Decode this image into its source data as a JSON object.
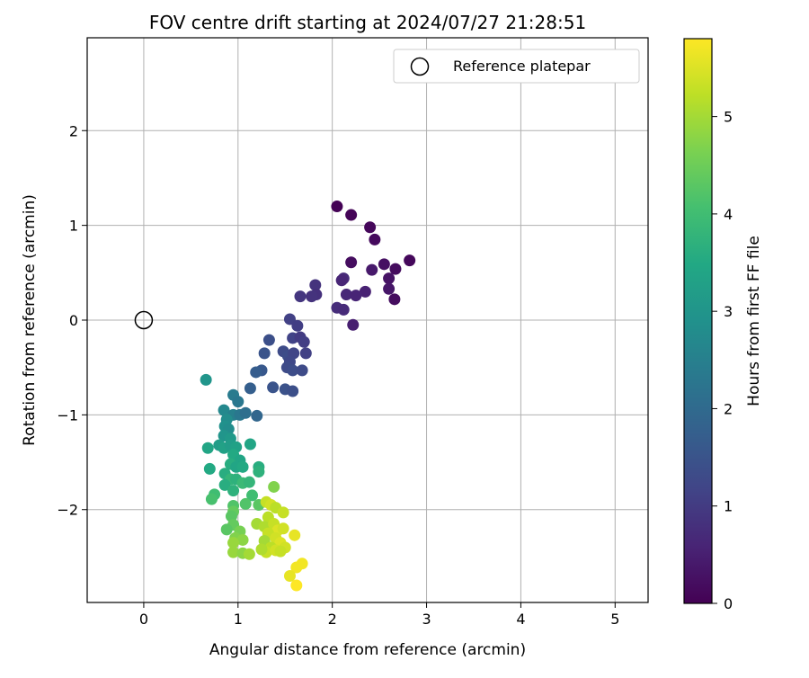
{
  "chart_data": {
    "type": "scatter",
    "title": "FOV centre drift starting at 2024/07/27 21:28:51",
    "xlabel": "Angular distance from reference (arcmin)",
    "ylabel": "Rotation from reference (arcmin)",
    "xlim": [
      -0.6,
      5.35
    ],
    "ylim": [
      -2.98,
      2.98
    ],
    "xticks": [
      0,
      1,
      2,
      3,
      4,
      5
    ],
    "yticks": [
      -2,
      -1,
      0,
      1,
      2
    ],
    "grid": true,
    "legend": {
      "placement": "top-right",
      "entries": [
        "Reference platepar"
      ]
    },
    "reference_point": {
      "name": "Reference platepar",
      "x": 0,
      "y": 0
    },
    "colorbar": {
      "label": "Hours from first FF file",
      "colormap": "viridis",
      "range": [
        0,
        5.8
      ],
      "ticks": [
        0,
        1,
        2,
        3,
        4,
        5
      ]
    },
    "points": [
      {
        "x": 2.05,
        "y": 1.2,
        "t": 0.02
      },
      {
        "x": 2.2,
        "y": 1.11,
        "t": 0.05
      },
      {
        "x": 2.4,
        "y": 0.98,
        "t": 0.1
      },
      {
        "x": 2.45,
        "y": 0.85,
        "t": 0.15
      },
      {
        "x": 2.2,
        "y": 0.61,
        "t": 0.2
      },
      {
        "x": 2.55,
        "y": 0.59,
        "t": 0.25
      },
      {
        "x": 2.82,
        "y": 0.63,
        "t": 0.12
      },
      {
        "x": 2.67,
        "y": 0.54,
        "t": 0.18
      },
      {
        "x": 2.42,
        "y": 0.53,
        "t": 0.4
      },
      {
        "x": 2.6,
        "y": 0.44,
        "t": 0.3
      },
      {
        "x": 2.12,
        "y": 0.44,
        "t": 0.7
      },
      {
        "x": 2.1,
        "y": 0.42,
        "t": 0.62
      },
      {
        "x": 2.6,
        "y": 0.33,
        "t": 0.35
      },
      {
        "x": 2.35,
        "y": 0.3,
        "t": 0.55
      },
      {
        "x": 2.15,
        "y": 0.27,
        "t": 0.65
      },
      {
        "x": 2.25,
        "y": 0.26,
        "t": 0.6
      },
      {
        "x": 2.66,
        "y": 0.22,
        "t": 0.2
      },
      {
        "x": 2.05,
        "y": 0.13,
        "t": 0.75
      },
      {
        "x": 2.12,
        "y": 0.11,
        "t": 0.7
      },
      {
        "x": 2.22,
        "y": -0.05,
        "t": 0.5
      },
      {
        "x": 1.82,
        "y": 0.37,
        "t": 0.85
      },
      {
        "x": 1.83,
        "y": 0.27,
        "t": 0.8
      },
      {
        "x": 1.78,
        "y": 0.25,
        "t": 0.85
      },
      {
        "x": 1.66,
        "y": 0.25,
        "t": 0.9
      },
      {
        "x": 1.55,
        "y": 0.01,
        "t": 1.1
      },
      {
        "x": 1.63,
        "y": -0.06,
        "t": 1.05
      },
      {
        "x": 1.58,
        "y": -0.19,
        "t": 1.15
      },
      {
        "x": 1.66,
        "y": -0.18,
        "t": 1.0
      },
      {
        "x": 1.7,
        "y": -0.23,
        "t": 1.05
      },
      {
        "x": 1.33,
        "y": -0.21,
        "t": 1.4
      },
      {
        "x": 1.28,
        "y": -0.35,
        "t": 1.5
      },
      {
        "x": 1.48,
        "y": -0.33,
        "t": 1.3
      },
      {
        "x": 1.53,
        "y": -0.38,
        "t": 1.35
      },
      {
        "x": 1.59,
        "y": -0.35,
        "t": 1.2
      },
      {
        "x": 1.72,
        "y": -0.35,
        "t": 1.1
      },
      {
        "x": 1.55,
        "y": -0.44,
        "t": 1.25
      },
      {
        "x": 1.52,
        "y": -0.5,
        "t": 1.3
      },
      {
        "x": 1.58,
        "y": -0.53,
        "t": 1.35
      },
      {
        "x": 1.68,
        "y": -0.53,
        "t": 1.3
      },
      {
        "x": 1.25,
        "y": -0.53,
        "t": 1.6
      },
      {
        "x": 1.19,
        "y": -0.55,
        "t": 1.7
      },
      {
        "x": 1.37,
        "y": -0.71,
        "t": 1.5
      },
      {
        "x": 1.5,
        "y": -0.73,
        "t": 1.45
      },
      {
        "x": 1.58,
        "y": -0.75,
        "t": 1.4
      },
      {
        "x": 1.13,
        "y": -0.72,
        "t": 1.75
      },
      {
        "x": 0.66,
        "y": -0.63,
        "t": 3.0
      },
      {
        "x": 0.95,
        "y": -0.79,
        "t": 2.4
      },
      {
        "x": 1.0,
        "y": -0.86,
        "t": 2.3
      },
      {
        "x": 0.85,
        "y": -0.95,
        "t": 2.7
      },
      {
        "x": 0.95,
        "y": -1.0,
        "t": 2.5
      },
      {
        "x": 1.02,
        "y": -1.0,
        "t": 2.3
      },
      {
        "x": 1.08,
        "y": -0.98,
        "t": 2.1
      },
      {
        "x": 1.2,
        "y": -1.01,
        "t": 1.9
      },
      {
        "x": 0.88,
        "y": -1.05,
        "t": 2.8
      },
      {
        "x": 0.86,
        "y": -1.12,
        "t": 2.9
      },
      {
        "x": 0.9,
        "y": -1.15,
        "t": 2.8
      },
      {
        "x": 0.85,
        "y": -1.22,
        "t": 3.0
      },
      {
        "x": 0.92,
        "y": -1.25,
        "t": 3.1
      },
      {
        "x": 0.8,
        "y": -1.32,
        "t": 3.2
      },
      {
        "x": 0.85,
        "y": -1.35,
        "t": 3.3
      },
      {
        "x": 0.92,
        "y": -1.32,
        "t": 3.2
      },
      {
        "x": 0.98,
        "y": -1.34,
        "t": 3.3
      },
      {
        "x": 0.68,
        "y": -1.35,
        "t": 3.4
      },
      {
        "x": 1.13,
        "y": -1.31,
        "t": 3.4
      },
      {
        "x": 0.95,
        "y": -1.42,
        "t": 3.5
      },
      {
        "x": 1.02,
        "y": -1.48,
        "t": 3.4
      },
      {
        "x": 0.92,
        "y": -1.52,
        "t": 3.6
      },
      {
        "x": 0.98,
        "y": -1.55,
        "t": 3.4
      },
      {
        "x": 1.05,
        "y": -1.55,
        "t": 3.5
      },
      {
        "x": 0.7,
        "y": -1.57,
        "t": 3.5
      },
      {
        "x": 1.22,
        "y": -1.55,
        "t": 3.6
      },
      {
        "x": 1.22,
        "y": -1.6,
        "t": 3.7
      },
      {
        "x": 0.86,
        "y": -1.62,
        "t": 3.6
      },
      {
        "x": 0.92,
        "y": -1.68,
        "t": 3.8
      },
      {
        "x": 0.98,
        "y": -1.68,
        "t": 3.7
      },
      {
        "x": 1.05,
        "y": -1.72,
        "t": 3.9
      },
      {
        "x": 1.12,
        "y": -1.71,
        "t": 3.8
      },
      {
        "x": 0.86,
        "y": -1.74,
        "t": 3.6
      },
      {
        "x": 0.75,
        "y": -1.84,
        "t": 4.0
      },
      {
        "x": 0.72,
        "y": -1.89,
        "t": 4.1
      },
      {
        "x": 0.95,
        "y": -1.8,
        "t": 3.7
      },
      {
        "x": 1.38,
        "y": -1.76,
        "t": 4.7
      },
      {
        "x": 1.15,
        "y": -1.85,
        "t": 4.0
      },
      {
        "x": 1.22,
        "y": -1.95,
        "t": 4.3
      },
      {
        "x": 1.08,
        "y": -1.94,
        "t": 4.2
      },
      {
        "x": 0.95,
        "y": -1.96,
        "t": 4.2
      },
      {
        "x": 0.95,
        "y": -2.02,
        "t": 4.4
      },
      {
        "x": 1.3,
        "y": -1.92,
        "t": 5.3
      },
      {
        "x": 1.35,
        "y": -1.95,
        "t": 5.4
      },
      {
        "x": 1.4,
        "y": -1.98,
        "t": 5.2
      },
      {
        "x": 1.48,
        "y": -2.03,
        "t": 5.3
      },
      {
        "x": 1.32,
        "y": -2.08,
        "t": 5.2
      },
      {
        "x": 0.93,
        "y": -2.07,
        "t": 4.3
      },
      {
        "x": 1.2,
        "y": -2.15,
        "t": 5.0
      },
      {
        "x": 1.28,
        "y": -2.18,
        "t": 5.1
      },
      {
        "x": 1.38,
        "y": -2.15,
        "t": 5.3
      },
      {
        "x": 1.42,
        "y": -2.22,
        "t": 5.5
      },
      {
        "x": 1.48,
        "y": -2.2,
        "t": 5.4
      },
      {
        "x": 1.6,
        "y": -2.27,
        "t": 5.6
      },
      {
        "x": 1.32,
        "y": -2.25,
        "t": 5.3
      },
      {
        "x": 1.4,
        "y": -2.3,
        "t": 5.4
      },
      {
        "x": 1.45,
        "y": -2.35,
        "t": 5.5
      },
      {
        "x": 0.95,
        "y": -2.16,
        "t": 4.4
      },
      {
        "x": 0.88,
        "y": -2.21,
        "t": 4.3
      },
      {
        "x": 1.02,
        "y": -2.23,
        "t": 4.6
      },
      {
        "x": 0.97,
        "y": -2.3,
        "t": 4.7
      },
      {
        "x": 1.05,
        "y": -2.32,
        "t": 4.8
      },
      {
        "x": 0.95,
        "y": -2.35,
        "t": 4.9
      },
      {
        "x": 1.28,
        "y": -2.33,
        "t": 5.0
      },
      {
        "x": 1.35,
        "y": -2.4,
        "t": 5.2
      },
      {
        "x": 1.3,
        "y": -2.45,
        "t": 5.3
      },
      {
        "x": 1.4,
        "y": -2.43,
        "t": 5.4
      },
      {
        "x": 1.5,
        "y": -2.4,
        "t": 5.4
      },
      {
        "x": 1.45,
        "y": -2.44,
        "t": 5.3
      },
      {
        "x": 0.95,
        "y": -2.45,
        "t": 4.9
      },
      {
        "x": 1.05,
        "y": -2.46,
        "t": 4.8
      },
      {
        "x": 1.12,
        "y": -2.47,
        "t": 5.0
      },
      {
        "x": 1.25,
        "y": -2.42,
        "t": 5.1
      },
      {
        "x": 1.68,
        "y": -2.57,
        "t": 5.7
      },
      {
        "x": 1.62,
        "y": -2.61,
        "t": 5.7
      },
      {
        "x": 1.55,
        "y": -2.7,
        "t": 5.6
      },
      {
        "x": 1.62,
        "y": -2.8,
        "t": 5.8
      }
    ]
  }
}
